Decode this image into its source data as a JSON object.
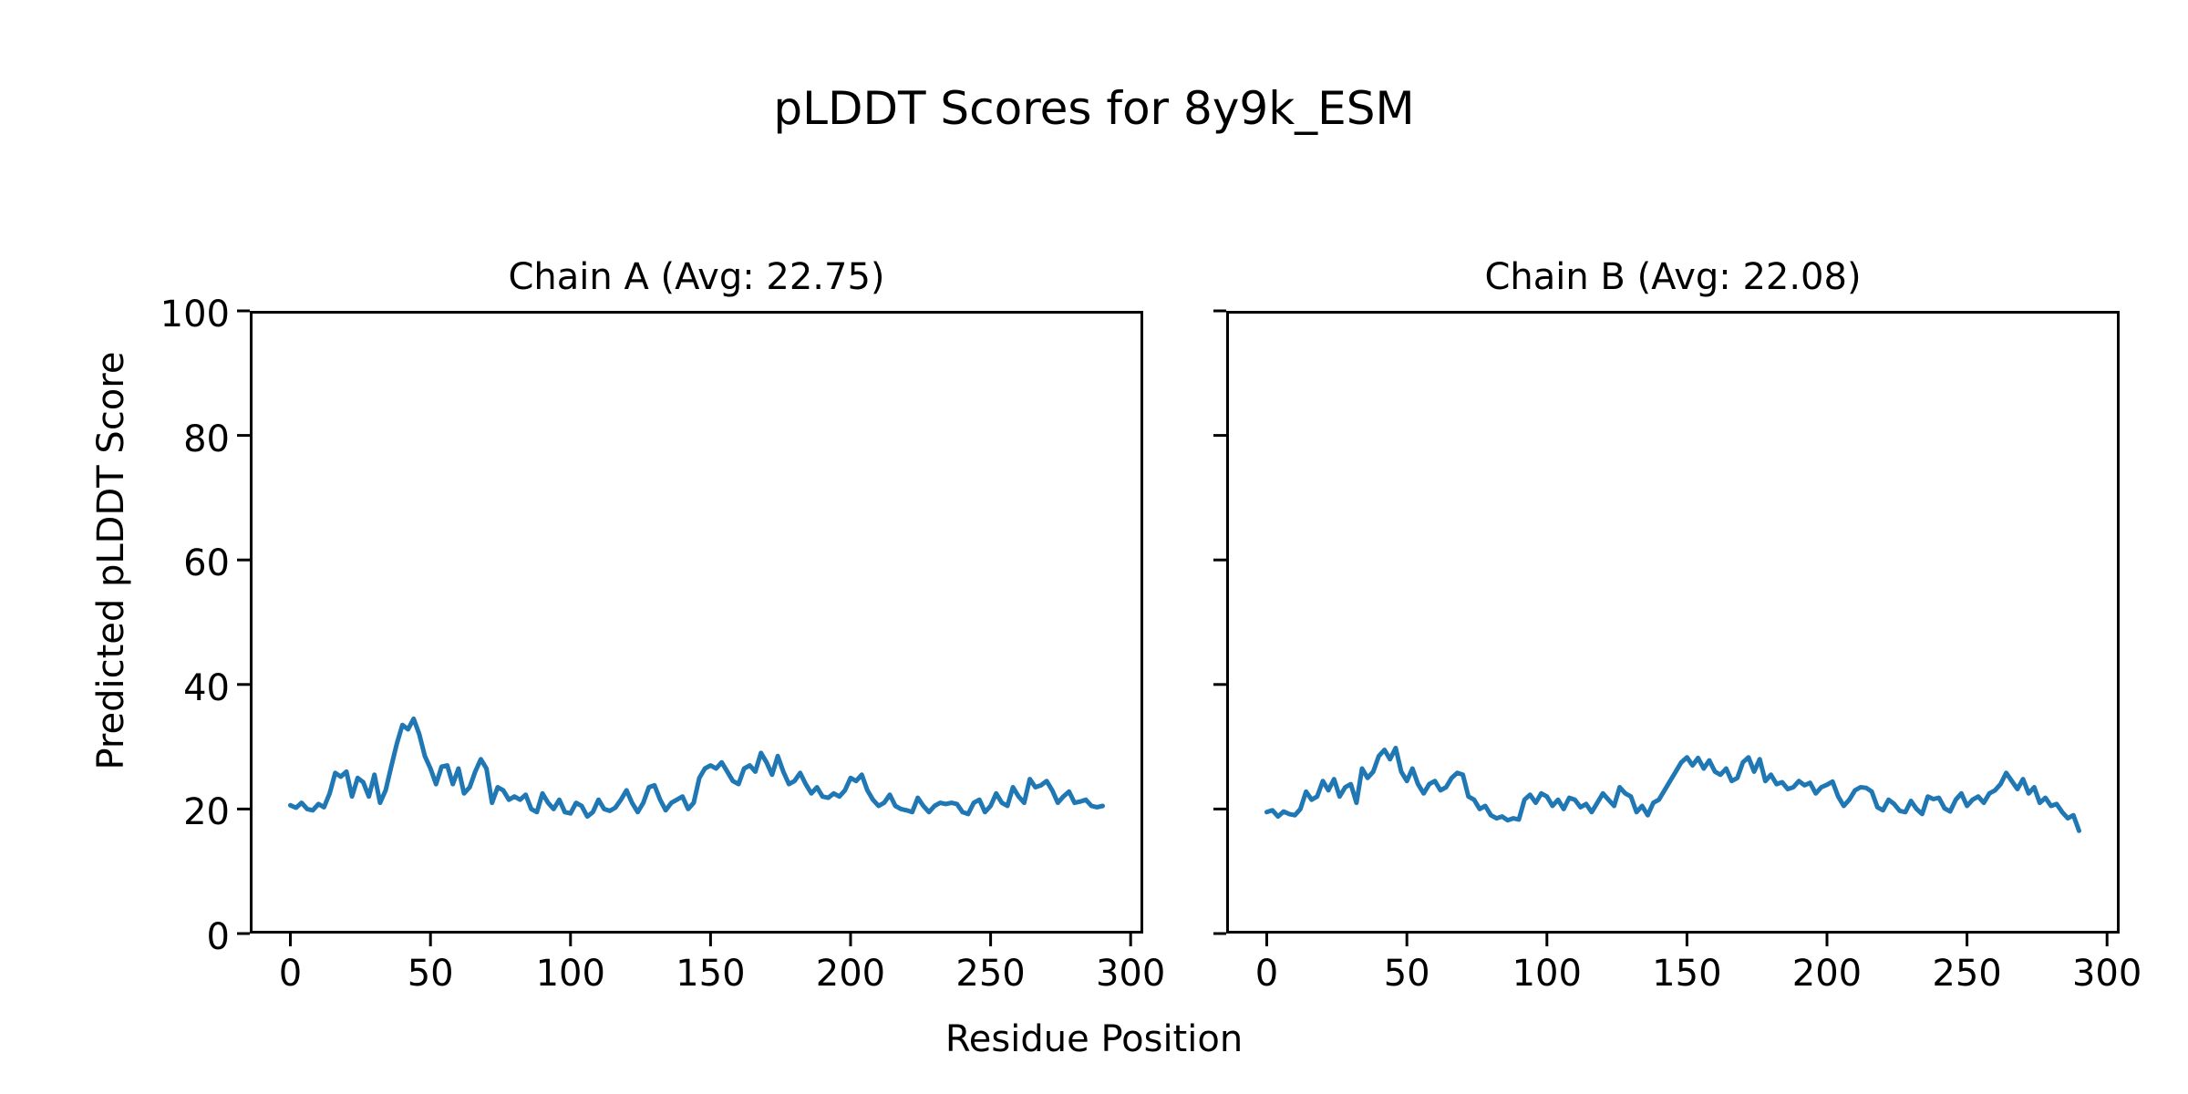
{
  "figure": {
    "title": "pLDDT Scores for 8y9k_ESM",
    "xlabel": "Residue Position",
    "ylabel": "Predicted pLDDT Score",
    "background_color": "#ffffff",
    "text_color": "#000000"
  },
  "chart_data": [
    {
      "type": "line",
      "title": "Chain A (Avg: 22.75)",
      "series_name": "Chain A",
      "avg": 22.75,
      "line_color": "#1f77b4",
      "xlabel": "Residue Position",
      "ylabel": "Predicted pLDDT Score",
      "xlim": [
        -14.5,
        304.5
      ],
      "ylim": [
        0,
        100
      ],
      "xticks": [
        0,
        50,
        100,
        150,
        200,
        250,
        300
      ],
      "yticks": [
        0,
        20,
        40,
        60,
        80,
        100
      ],
      "show_y_tick_labels": true,
      "grid": false,
      "x_start": 0,
      "x_step": 2,
      "values": [
        20.6,
        20.2,
        21.0,
        20.0,
        19.8,
        20.8,
        20.3,
        22.5,
        25.8,
        25.2,
        26.0,
        22.0,
        25.0,
        24.3,
        22.0,
        25.5,
        21.0,
        23.0,
        26.8,
        30.5,
        33.5,
        32.8,
        34.5,
        32.0,
        28.5,
        26.5,
        24.0,
        26.8,
        27.0,
        24.0,
        26.5,
        22.5,
        23.5,
        26.0,
        28.0,
        26.5,
        21.0,
        23.5,
        23.0,
        21.5,
        22.0,
        21.5,
        22.3,
        20.0,
        19.5,
        22.5,
        21.0,
        20.0,
        21.5,
        19.5,
        19.3,
        21.0,
        20.5,
        18.8,
        19.5,
        21.5,
        20.0,
        19.7,
        20.2,
        21.5,
        23.0,
        21.0,
        19.5,
        21.0,
        23.5,
        23.8,
        21.5,
        19.8,
        21.0,
        21.5,
        22.0,
        20.0,
        21.0,
        25.0,
        26.5,
        27.0,
        26.5,
        27.5,
        26.0,
        24.5,
        24.0,
        26.5,
        27.0,
        26.0,
        29.0,
        27.5,
        25.5,
        28.5,
        26.0,
        24.0,
        24.5,
        25.8,
        24.0,
        22.5,
        23.5,
        22.0,
        21.8,
        22.5,
        22.0,
        23.0,
        25.0,
        24.5,
        25.5,
        23.0,
        21.5,
        20.5,
        21.0,
        22.3,
        20.5,
        20.0,
        19.8,
        19.5,
        21.8,
        20.5,
        19.5,
        20.5,
        21.0,
        20.8,
        21.0,
        20.8,
        19.5,
        19.2,
        21.0,
        21.5,
        19.5,
        20.5,
        22.5,
        21.0,
        20.5,
        23.5,
        22.0,
        21.0,
        24.8,
        23.5,
        23.8,
        24.5,
        23.0,
        21.0,
        22.0,
        22.8,
        21.0,
        21.2,
        21.5,
        20.5,
        20.3,
        20.5
      ]
    },
    {
      "type": "line",
      "title": "Chain B (Avg: 22.08)",
      "series_name": "Chain B",
      "avg": 22.08,
      "line_color": "#1f77b4",
      "xlabel": "Residue Position",
      "ylabel": "Predicted pLDDT Score",
      "xlim": [
        -14.5,
        304.5
      ],
      "ylim": [
        0,
        100
      ],
      "xticks": [
        0,
        50,
        100,
        150,
        200,
        250,
        300
      ],
      "yticks": [
        0,
        20,
        40,
        60,
        80,
        100
      ],
      "show_y_tick_labels": false,
      "grid": false,
      "x_start": 0,
      "x_step": 2,
      "values": [
        19.5,
        19.8,
        18.8,
        19.6,
        19.2,
        19.0,
        20.0,
        22.8,
        21.5,
        22.0,
        24.5,
        23.0,
        24.8,
        22.0,
        23.5,
        24.0,
        21.0,
        26.5,
        25.0,
        26.0,
        28.5,
        29.5,
        28.0,
        29.8,
        26.0,
        24.5,
        26.5,
        24.0,
        22.5,
        24.0,
        24.5,
        23.0,
        23.5,
        25.0,
        25.8,
        25.5,
        22.0,
        21.5,
        20.0,
        20.5,
        19.0,
        18.5,
        18.8,
        18.2,
        18.5,
        18.3,
        21.5,
        22.3,
        21.0,
        22.5,
        22.0,
        20.5,
        21.5,
        20.0,
        21.8,
        21.5,
        20.3,
        20.8,
        19.5,
        21.0,
        22.5,
        21.5,
        20.5,
        23.5,
        22.5,
        22.0,
        19.5,
        20.5,
        19.0,
        21.0,
        21.5,
        23.0,
        24.5,
        26.0,
        27.5,
        28.3,
        27.0,
        28.2,
        26.5,
        27.8,
        26.0,
        25.5,
        26.5,
        24.5,
        25.0,
        27.5,
        28.3,
        26.0,
        28.0,
        24.5,
        25.5,
        24.0,
        24.3,
        23.2,
        23.5,
        24.5,
        23.8,
        24.2,
        22.5,
        23.5,
        23.9,
        24.4,
        22.0,
        20.5,
        21.5,
        23.0,
        23.5,
        23.4,
        22.8,
        20.3,
        19.8,
        21.5,
        20.8,
        19.7,
        19.5,
        21.3,
        20.0,
        19.2,
        22.0,
        21.6,
        21.8,
        20.1,
        19.6,
        21.5,
        22.5,
        20.5,
        21.5,
        22.0,
        21.0,
        22.5,
        23.0,
        24.0,
        25.8,
        24.5,
        23.2,
        24.8,
        22.5,
        23.5,
        21.0,
        21.8,
        20.5,
        20.8,
        19.5,
        18.5,
        19.0,
        16.5
      ]
    }
  ]
}
